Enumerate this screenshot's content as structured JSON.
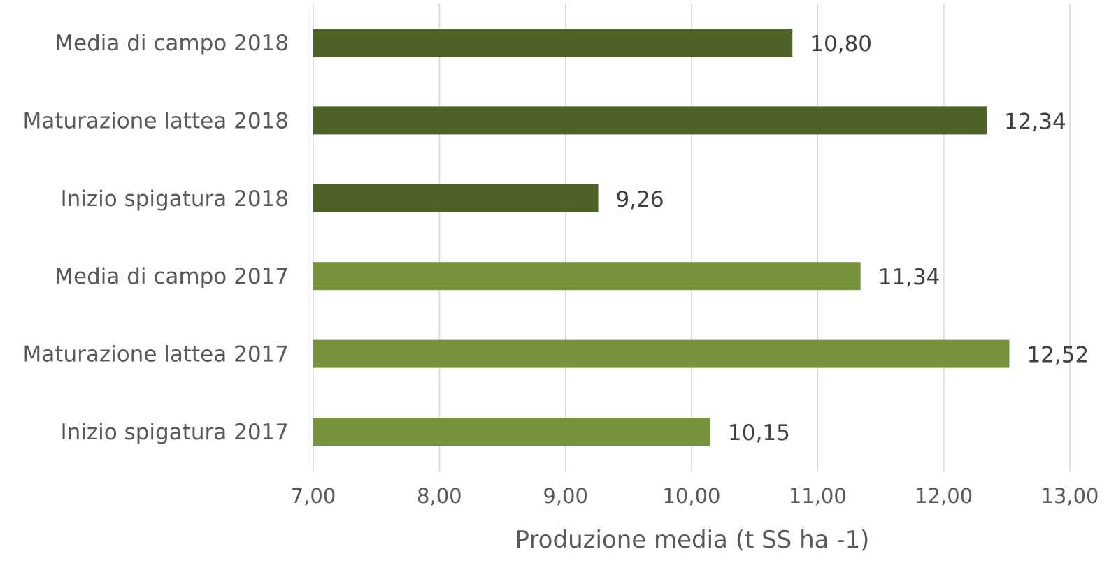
{
  "chart_data": {
    "type": "bar",
    "orientation": "horizontal",
    "categories": [
      "Media di campo 2018",
      "Maturazione lattea 2018",
      "Inizio spigatura 2018",
      "Media di campo 2017",
      "Maturazione lattea 2017",
      "Inizio spigatura 2017"
    ],
    "values": [
      10.8,
      12.34,
      9.26,
      11.34,
      12.52,
      10.15
    ],
    "value_labels": [
      "10,80",
      "12,34",
      "9,26",
      "11,34",
      "12,52",
      "10,15"
    ],
    "bar_colors": [
      "#4f6228",
      "#4f6228",
      "#4f6228",
      "#77933c",
      "#77933c",
      "#77933c"
    ],
    "xlabel": "Produzione media (t SS ha -1)",
    "xlim": [
      7.0,
      13.0
    ],
    "ticks": [
      7,
      8,
      9,
      10,
      11,
      12,
      13
    ],
    "tick_labels": [
      "7,00",
      "8,00",
      "9,00",
      "10,00",
      "11,00",
      "12,00",
      "13,00"
    ],
    "grid": "vertical",
    "legend": "none"
  }
}
